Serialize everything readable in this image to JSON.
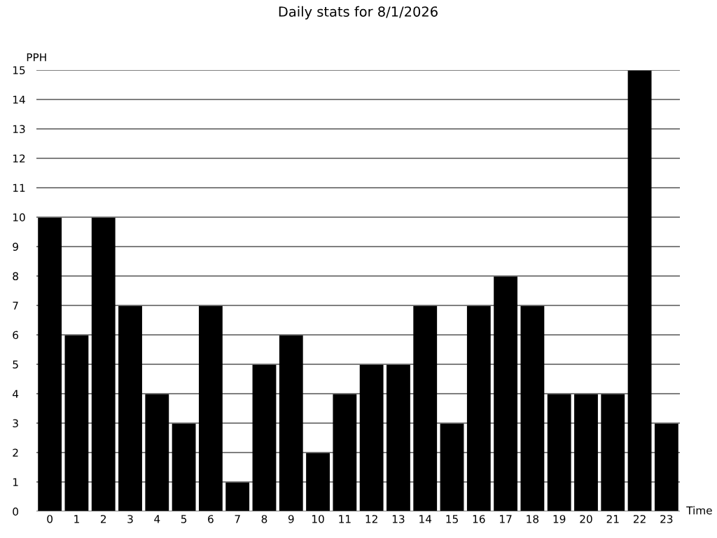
{
  "chart_data": {
    "type": "bar",
    "title": "Daily stats for 8/1/2026",
    "xlabel": "Time",
    "ylabel": "PPH",
    "categories": [
      "0",
      "1",
      "2",
      "3",
      "4",
      "5",
      "6",
      "7",
      "8",
      "9",
      "10",
      "11",
      "12",
      "13",
      "14",
      "15",
      "16",
      "17",
      "18",
      "19",
      "20",
      "21",
      "22",
      "23"
    ],
    "values": [
      10,
      6,
      10,
      7,
      4,
      3,
      7,
      1,
      5,
      6,
      2,
      4,
      5,
      5,
      7,
      3,
      7,
      8,
      7,
      4,
      4,
      4,
      15,
      3
    ],
    "color": "#000000",
    "ylim": [
      0,
      15
    ],
    "yticks": [
      0,
      1,
      2,
      3,
      4,
      5,
      6,
      7,
      8,
      9,
      10,
      11,
      12,
      13,
      14,
      15
    ],
    "grid": "y",
    "legend": false
  }
}
